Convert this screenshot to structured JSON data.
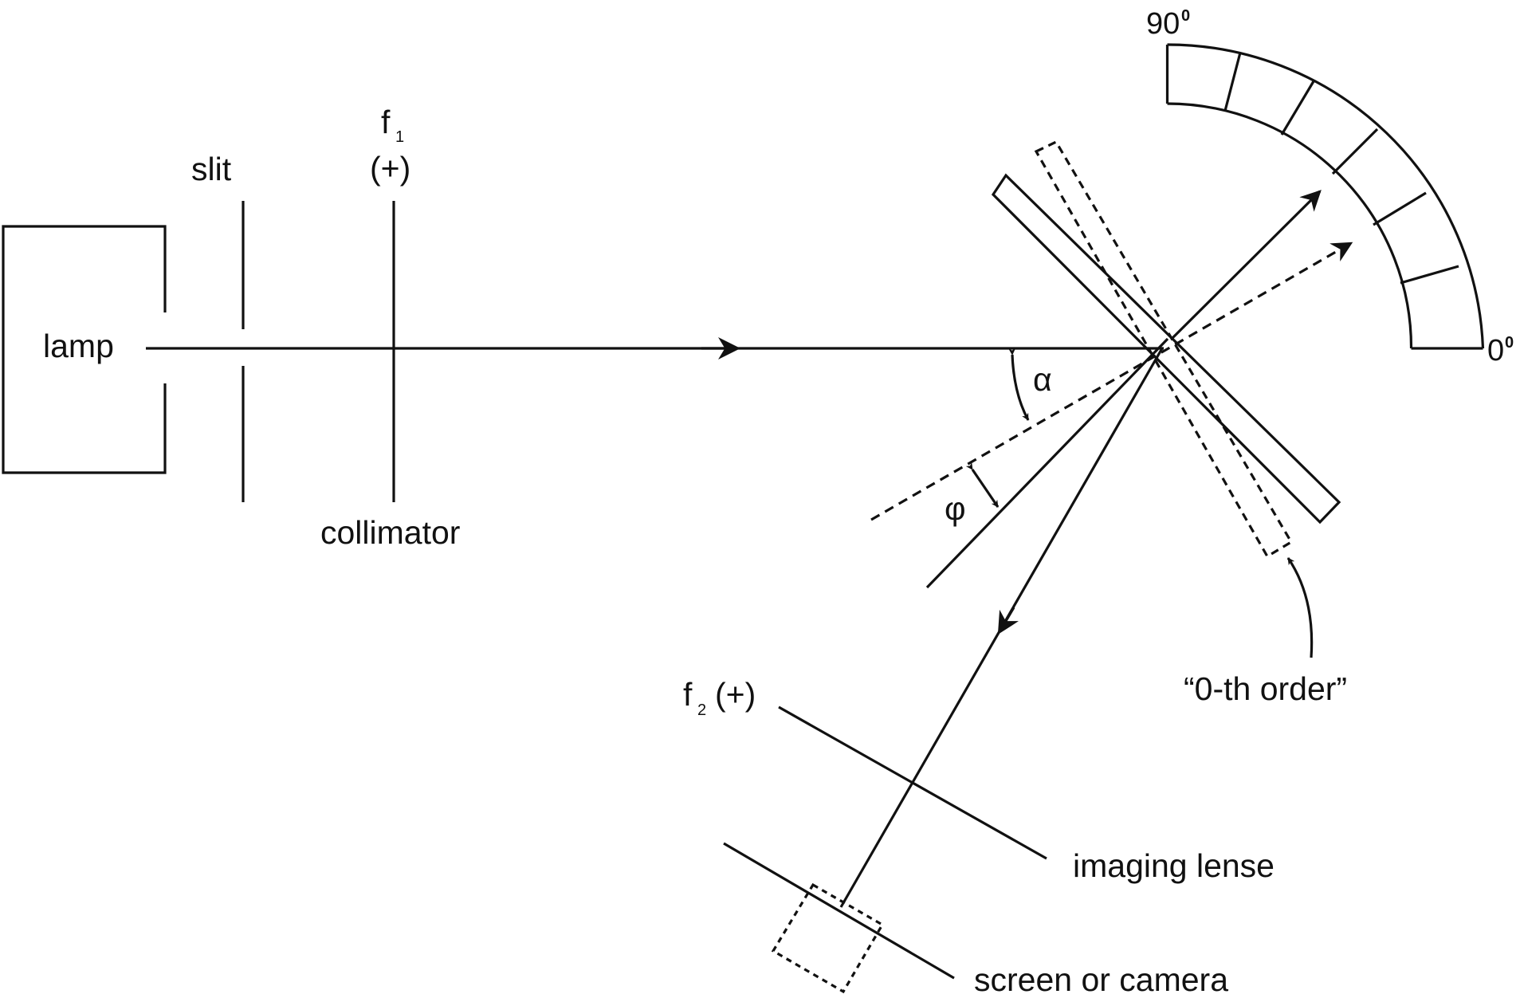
{
  "labels": {
    "lamp": "lamp",
    "slit": "slit",
    "f1": "f",
    "f1_sub": "1",
    "f1_sign": "(+)",
    "collimator": "collimator",
    "alpha": "α",
    "phi": "φ",
    "f2": "f",
    "f2_sub": "2",
    "f2_sign": "(+)",
    "imaging_lense": "imaging lense",
    "screen_or_camera": "screen or camera",
    "zeroth_order": "“0-th order”",
    "angle_90": "90",
    "angle_0": "0",
    "degree_mark": "0"
  },
  "colors": {
    "ink": "#111111",
    "background": "#ffffff"
  }
}
